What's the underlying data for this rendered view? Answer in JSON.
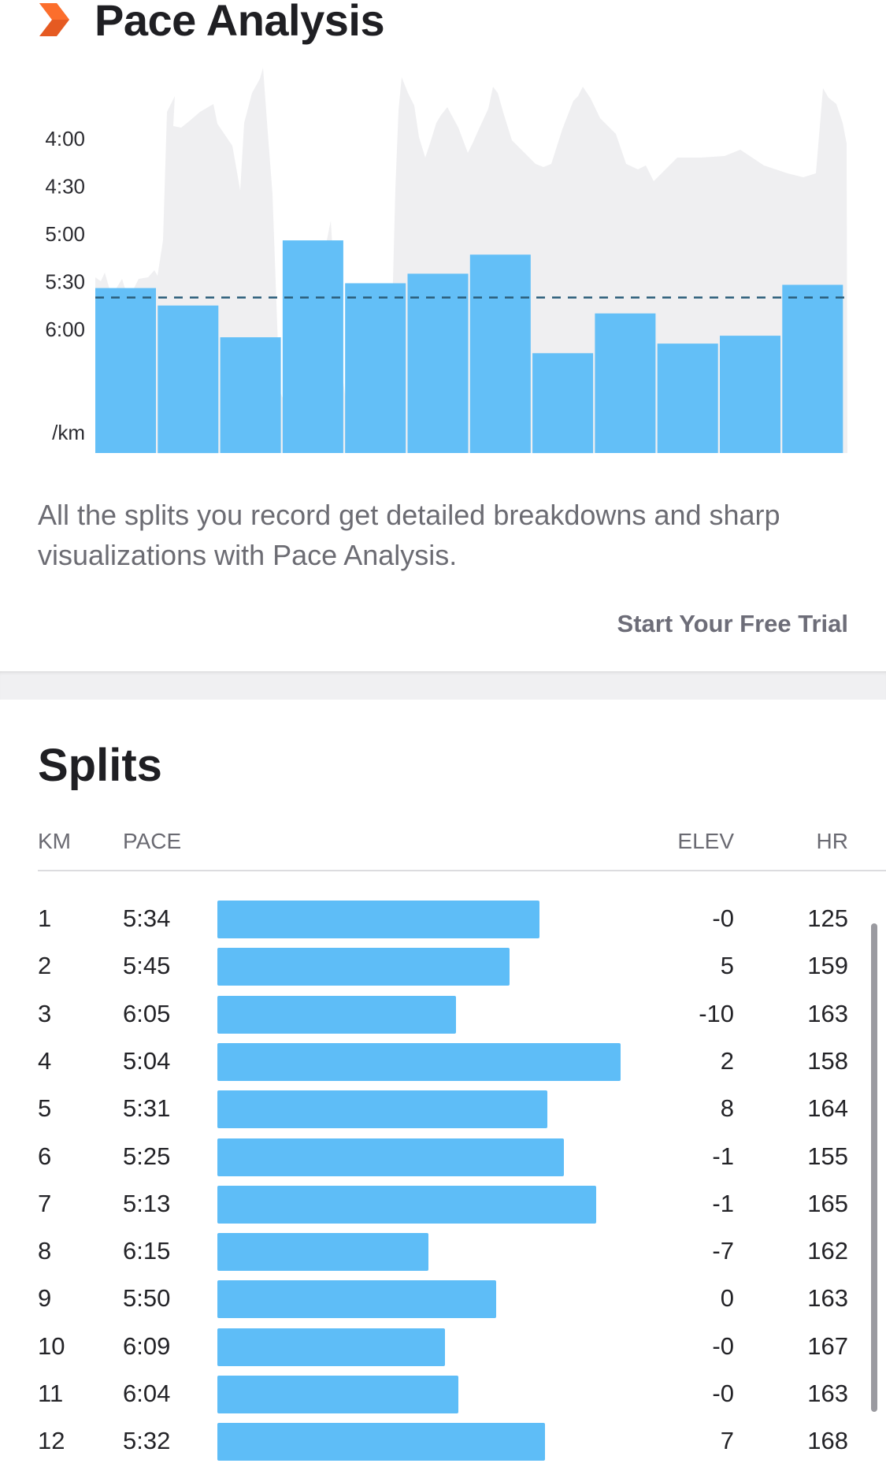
{
  "pace_analysis": {
    "title": "Pace Analysis",
    "icon": "chevron-right-icon",
    "description": "All the splits you record get detailed breakdowns and sharp visualizations with Pace Analysis.",
    "cta_label": "Start Your Free Trial"
  },
  "chart_data": {
    "type": "bar",
    "categories": [
      "1",
      "2",
      "3",
      "4",
      "5",
      "6",
      "7",
      "8",
      "9",
      "10",
      "11",
      "12"
    ],
    "values": [
      "5:34",
      "5:45",
      "6:05",
      "5:04",
      "5:31",
      "5:25",
      "5:13",
      "6:15",
      "5:50",
      "6:09",
      "6:04",
      "5:32"
    ],
    "y_ticks": [
      "4:00",
      "4:30",
      "5:00",
      "5:30",
      "6:00"
    ],
    "y_unit": "/km",
    "average_line": "5:40",
    "bar_color": "#5ebdf7",
    "background_area_color": "#efeff1",
    "grid": false,
    "legend": "none"
  },
  "splits": {
    "title": "Splits",
    "columns": {
      "km": "KM",
      "pace": "PACE",
      "elev": "ELEV",
      "hr": "HR"
    },
    "rows": [
      {
        "km": "1",
        "pace": "5:34",
        "elev": "-0",
        "hr": "125"
      },
      {
        "km": "2",
        "pace": "5:45",
        "elev": "5",
        "hr": "159"
      },
      {
        "km": "3",
        "pace": "6:05",
        "elev": "-10",
        "hr": "163"
      },
      {
        "km": "4",
        "pace": "5:04",
        "elev": "2",
        "hr": "158"
      },
      {
        "km": "5",
        "pace": "5:31",
        "elev": "8",
        "hr": "164"
      },
      {
        "km": "6",
        "pace": "5:25",
        "elev": "-1",
        "hr": "155"
      },
      {
        "km": "7",
        "pace": "5:13",
        "elev": "-1",
        "hr": "165"
      },
      {
        "km": "8",
        "pace": "6:15",
        "elev": "-7",
        "hr": "162"
      },
      {
        "km": "9",
        "pace": "5:50",
        "elev": "0",
        "hr": "163"
      },
      {
        "km": "10",
        "pace": "6:09",
        "elev": "-0",
        "hr": "167"
      },
      {
        "km": "11",
        "pace": "6:04",
        "elev": "-0",
        "hr": "163"
      },
      {
        "km": "12",
        "pace": "5:32",
        "elev": "7",
        "hr": "168"
      }
    ]
  }
}
